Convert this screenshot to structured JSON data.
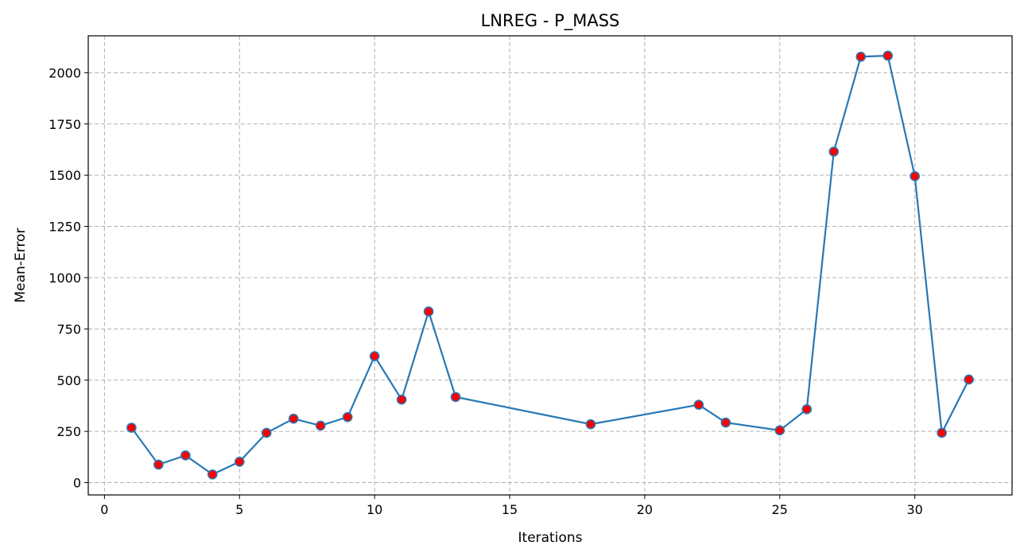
{
  "chart_data": {
    "type": "line",
    "title": "LNREG - P_MASS",
    "xlabel": "Iterations",
    "ylabel": "Mean-Error",
    "xlim": [
      -0.6,
      33.6
    ],
    "ylim": [
      -60,
      2180
    ],
    "xticks": [
      0,
      5,
      10,
      15,
      20,
      25,
      30
    ],
    "yticks": [
      0,
      250,
      500,
      750,
      1000,
      1250,
      1500,
      1750,
      2000
    ],
    "grid": true,
    "line_color": "#2878b4",
    "marker_fill": "#ff0000",
    "marker_edge": "#2878b4",
    "series": [
      {
        "x": [
          1,
          2,
          3,
          4,
          5,
          6,
          7,
          8,
          9,
          10,
          11,
          12,
          13,
          18,
          22,
          23,
          25,
          26,
          27,
          28,
          29,
          30,
          31,
          32
        ],
        "values": [
          268,
          88,
          133,
          40,
          102,
          243,
          312,
          278,
          320,
          617,
          405,
          835,
          418,
          285,
          380,
          293,
          255,
          358,
          1615,
          2078,
          2083,
          1495,
          243,
          503
        ]
      }
    ]
  }
}
